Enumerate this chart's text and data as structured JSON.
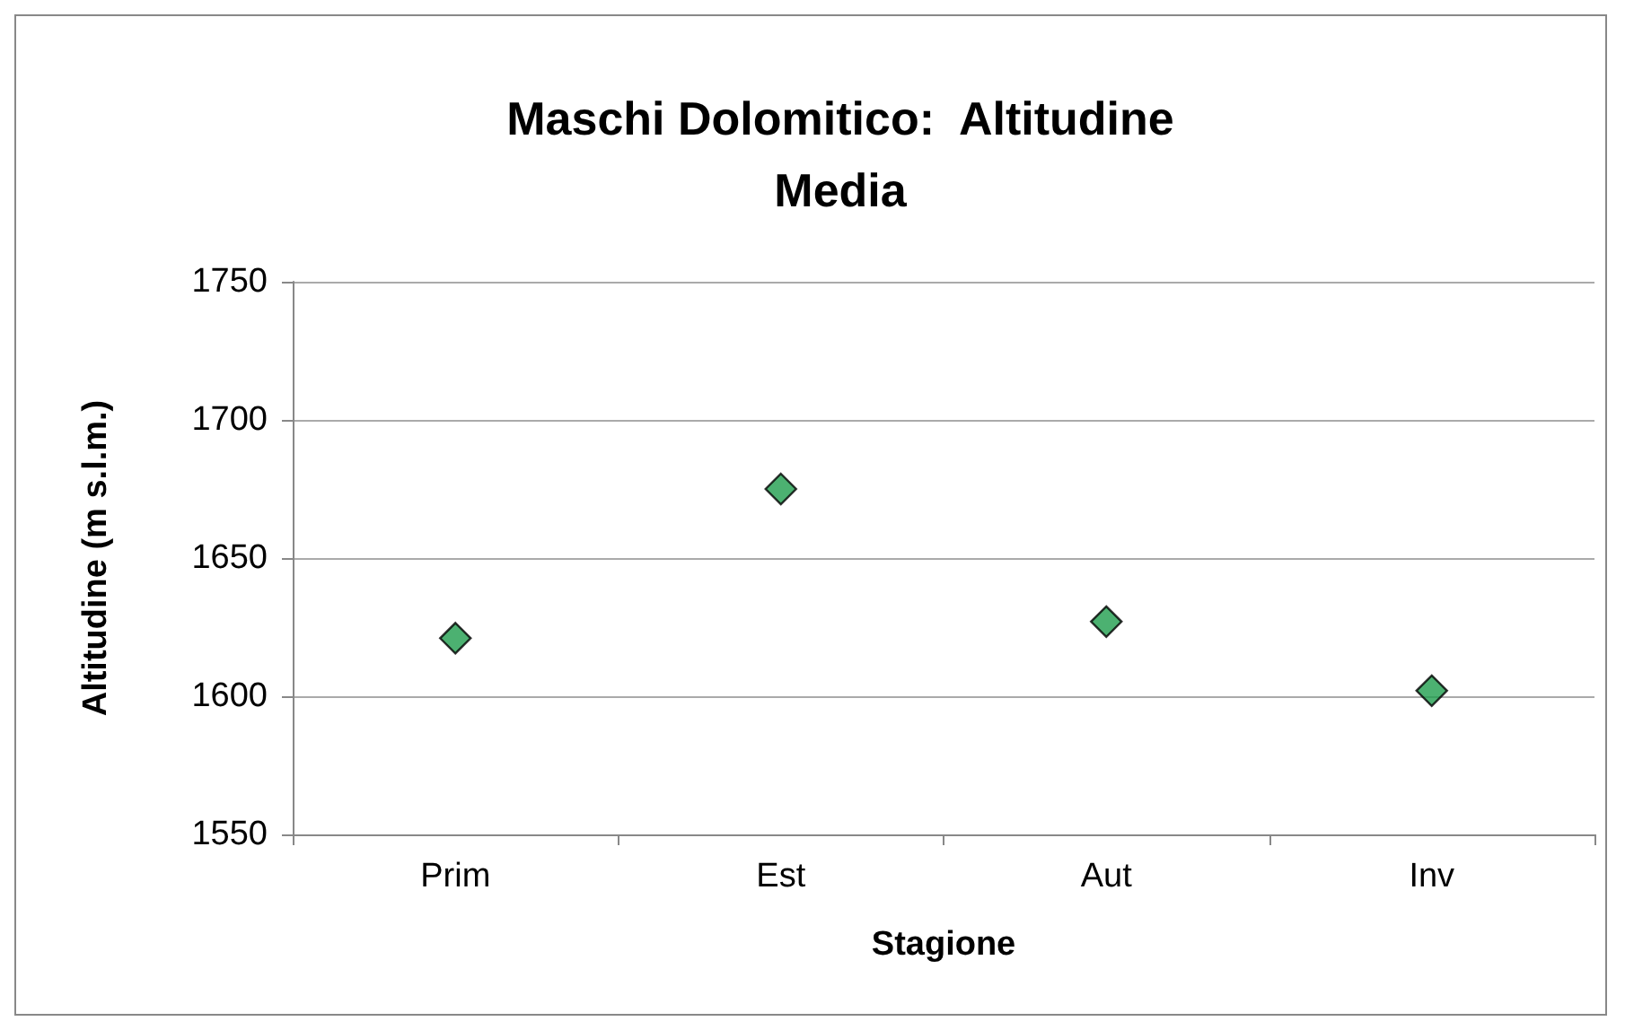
{
  "chart_data": {
    "type": "scatter",
    "title": "Maschi Dolomitico:  Altitudine\nMedia",
    "xlabel": "Stagione",
    "ylabel": "Altitudine (m s.l.m.)",
    "categories": [
      "Prim",
      "Est",
      "Aut",
      "Inv"
    ],
    "series": [
      {
        "color": "#1f9e4e",
        "values": [
          1621,
          1675,
          1627,
          1602
        ]
      }
    ],
    "ylim": [
      1550,
      1750
    ],
    "yticks": [
      1550,
      1600,
      1650,
      1700,
      1750
    ],
    "grid": "y",
    "marker": "diamond"
  }
}
